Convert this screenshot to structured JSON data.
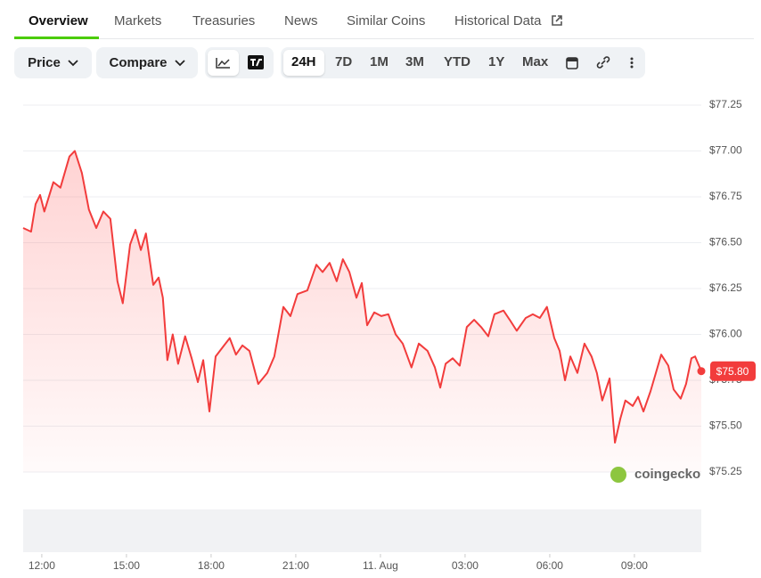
{
  "tabs": [
    "Overview",
    "Markets",
    "Treasuries",
    "News",
    "Similar Coins",
    "Historical Data"
  ],
  "controls": {
    "price": "Price",
    "compare": "Compare",
    "ranges": [
      "24H",
      "7D",
      "1M",
      "3M",
      "YTD",
      "1Y",
      "Max"
    ]
  },
  "watermark": "coingecko",
  "chart_data": {
    "type": "line",
    "color": "#f23c3c",
    "grid": true,
    "x": [
      -0.66,
      -0.38,
      -0.22,
      -0.06,
      0.09,
      0.41,
      0.66,
      0.98,
      1.17,
      1.42,
      1.67,
      1.93,
      2.18,
      2.43,
      2.68,
      2.87,
      3.13,
      3.32,
      3.51,
      3.69,
      3.95,
      4.14,
      4.29,
      4.45,
      4.64,
      4.83,
      5.08,
      5.31,
      5.53,
      5.72,
      5.94,
      6.16,
      6.41,
      6.66,
      6.88,
      7.11,
      7.36,
      7.67,
      7.99,
      8.24,
      8.56,
      8.81,
      9.06,
      9.41,
      9.73,
      9.95,
      10.2,
      10.45,
      10.67,
      10.9,
      11.15,
      11.34,
      11.53,
      11.78,
      12.03,
      12.28,
      12.54,
      12.79,
      13.1,
      13.36,
      13.67,
      13.93,
      14.12,
      14.31,
      14.56,
      14.81,
      15.06,
      15.32,
      15.57,
      15.82,
      16.04,
      16.36,
      16.58,
      16.83,
      17.15,
      17.4,
      17.65,
      17.9,
      18.16,
      18.35,
      18.54,
      18.73,
      18.98,
      19.23,
      19.48,
      19.67,
      19.86,
      20.12,
      20.31,
      20.5,
      20.68,
      20.94,
      21.13,
      21.32,
      21.57,
      21.76,
      21.95,
      22.2,
      22.39,
      22.64,
      22.83,
      23.02,
      23.15,
      23.37
    ],
    "values": [
      76.58,
      76.56,
      76.71,
      76.76,
      76.67,
      76.83,
      76.8,
      76.97,
      77.0,
      76.88,
      76.68,
      76.58,
      76.67,
      76.63,
      76.29,
      76.17,
      76.49,
      76.57,
      76.46,
      76.55,
      76.27,
      76.31,
      76.2,
      75.86,
      76.0,
      75.84,
      75.99,
      75.87,
      75.74,
      75.86,
      75.58,
      75.88,
      75.93,
      75.98,
      75.89,
      75.94,
      75.91,
      75.73,
      75.79,
      75.88,
      76.15,
      76.1,
      76.22,
      76.24,
      76.38,
      76.34,
      76.39,
      76.29,
      76.41,
      76.34,
      76.2,
      76.28,
      76.05,
      76.12,
      76.1,
      76.11,
      76.0,
      75.95,
      75.82,
      75.95,
      75.91,
      75.82,
      75.71,
      75.84,
      75.87,
      75.83,
      76.04,
      76.08,
      76.04,
      75.99,
      76.11,
      76.13,
      76.08,
      76.02,
      76.09,
      76.11,
      76.09,
      76.15,
      75.98,
      75.91,
      75.75,
      75.88,
      75.79,
      75.95,
      75.88,
      75.79,
      75.64,
      75.76,
      75.41,
      75.54,
      75.64,
      75.61,
      75.66,
      75.58,
      75.69,
      75.79,
      75.89,
      75.83,
      75.7,
      75.65,
      75.73,
      75.87,
      75.88,
      75.8
    ],
    "xlim": [
      -0.66,
      23.37
    ],
    "xticks": [
      {
        "value": 0,
        "label": "12:00"
      },
      {
        "value": 3,
        "label": "15:00"
      },
      {
        "value": 6,
        "label": "18:00"
      },
      {
        "value": 9,
        "label": "21:00"
      },
      {
        "value": 12,
        "label": "11. Aug"
      },
      {
        "value": 15,
        "label": "03:00"
      },
      {
        "value": 18,
        "label": "06:00"
      },
      {
        "value": 21,
        "label": "09:00"
      }
    ],
    "ylim": [
      75.25,
      77.25
    ],
    "yticks": [
      {
        "value": 75.25,
        "label": "$75.25"
      },
      {
        "value": 75.5,
        "label": "$75.50"
      },
      {
        "value": 75.75,
        "label": "$75.75"
      },
      {
        "value": 76,
        "label": "$76.00"
      },
      {
        "value": 76.25,
        "label": "$76.25"
      },
      {
        "value": 76.5,
        "label": "$76.50"
      },
      {
        "value": 76.75,
        "label": "$76.75"
      },
      {
        "value": 77,
        "label": "$77.00"
      },
      {
        "value": 77.25,
        "label": "$77.25"
      }
    ],
    "current_price": {
      "value": 75.8,
      "label": "$75.80"
    }
  }
}
